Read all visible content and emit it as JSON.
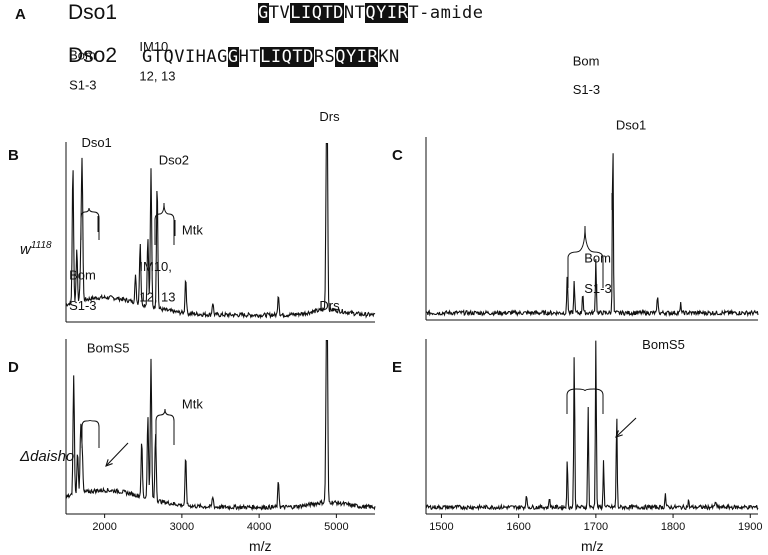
{
  "panelA": {
    "letter": "A",
    "sequences": [
      {
        "name": "Dso1",
        "segments": [
          {
            "t": "G",
            "h": true
          },
          {
            "t": "TV",
            "h": false
          },
          {
            "t": "LIQTD",
            "h": true
          },
          {
            "t": "NT",
            "h": false
          },
          {
            "t": "QYIR",
            "h": true
          },
          {
            "t": "T-amide",
            "h": false
          }
        ]
      },
      {
        "name": "Dso2",
        "segments": [
          {
            "t": "GTQVIHAG",
            "h": false
          },
          {
            "t": "G",
            "h": true
          },
          {
            "t": "HT",
            "h": false
          },
          {
            "t": "LIQTD",
            "h": true
          },
          {
            "t": "RS",
            "h": false
          },
          {
            "t": "QYIR",
            "h": true
          },
          {
            "t": "KN",
            "h": false
          }
        ]
      }
    ]
  },
  "row_labels": {
    "top": "w",
    "top_sup": "1118",
    "bottom": "Δdaisho"
  },
  "xlabel": "m/z",
  "chart_data": [
    {
      "panel": "B",
      "type": "line",
      "xlim": [
        1500,
        5500
      ],
      "ticks": [],
      "peaks": [
        [
          1590,
          0.78
        ],
        [
          1640,
          0.3
        ],
        [
          1690,
          0.18
        ],
        [
          1700,
          0.22
        ],
        [
          1710,
          0.68
        ],
        [
          2400,
          0.15
        ],
        [
          2460,
          0.35
        ],
        [
          2560,
          0.4
        ],
        [
          2600,
          0.78
        ],
        [
          2680,
          0.72
        ],
        [
          3050,
          0.2
        ],
        [
          3400,
          0.07
        ],
        [
          4250,
          0.12
        ],
        [
          4870,
          0.65
        ],
        [
          4880,
          1.0
        ]
      ],
      "labels": [
        {
          "text": "Bom",
          "x": 1540,
          "y": 1.5
        },
        {
          "text": "S1-3",
          "x": 1540,
          "y": 1.33
        },
        {
          "text": "Dso1",
          "x": 1700,
          "y": 1.0
        },
        {
          "text": "IM10,",
          "x": 2450,
          "y": 1.55
        },
        {
          "text": "12, 13",
          "x": 2450,
          "y": 1.38
        },
        {
          "text": "Dso2",
          "x": 2700,
          "y": 0.9
        },
        {
          "text": "Mtk",
          "x": 3000,
          "y": 0.5
        },
        {
          "text": "Drs",
          "x": 4780,
          "y": 1.15
        }
      ]
    },
    {
      "panel": "C",
      "type": "line",
      "xlim": [
        1480,
        1910
      ],
      "ticks": [],
      "peaks": [
        [
          1663,
          0.22
        ],
        [
          1672,
          0.18
        ],
        [
          1683,
          0.12
        ],
        [
          1700,
          0.3
        ],
        [
          1722,
          1.0
        ],
        [
          1780,
          0.1
        ],
        [
          1810,
          0.05
        ]
      ],
      "labels": [
        {
          "text": "Bom",
          "x": 1670,
          "y": 1.43
        },
        {
          "text": "S1-3",
          "x": 1670,
          "y": 1.27
        },
        {
          "text": "Dso1",
          "x": 1726,
          "y": 1.07
        }
      ]
    },
    {
      "panel": "D",
      "type": "line",
      "xlim": [
        1500,
        5500
      ],
      "ticks": [
        2000,
        3000,
        4000,
        5000
      ],
      "peaks": [
        [
          1600,
          0.7
        ],
        [
          1650,
          0.25
        ],
        [
          1690,
          0.4
        ],
        [
          1710,
          0.25
        ],
        [
          2480,
          0.32
        ],
        [
          2560,
          0.48
        ],
        [
          2600,
          0.82
        ],
        [
          2660,
          0.4
        ],
        [
          3050,
          0.28
        ],
        [
          3400,
          0.06
        ],
        [
          4250,
          0.15
        ],
        [
          4870,
          0.65
        ],
        [
          4880,
          1.0
        ]
      ],
      "labels": [
        {
          "text": "Bom",
          "x": 1540,
          "y": 1.38
        },
        {
          "text": "S1-3",
          "x": 1540,
          "y": 1.2
        },
        {
          "text": "BomS5",
          "x": 1770,
          "y": 0.95
        },
        {
          "text": "IM10,",
          "x": 2450,
          "y": 1.43
        },
        {
          "text": "12, 13",
          "x": 2450,
          "y": 1.25
        },
        {
          "text": "Mtk",
          "x": 3000,
          "y": 0.62
        },
        {
          "text": "Drs",
          "x": 4780,
          "y": 1.2
        }
      ]
    },
    {
      "panel": "E",
      "type": "line",
      "xlim": [
        1480,
        1910
      ],
      "ticks": [
        1500,
        1600,
        1700,
        1800,
        1900
      ],
      "peaks": [
        [
          1610,
          0.08
        ],
        [
          1640,
          0.06
        ],
        [
          1663,
          0.28
        ],
        [
          1672,
          0.92
        ],
        [
          1690,
          0.6
        ],
        [
          1700,
          1.0
        ],
        [
          1710,
          0.28
        ],
        [
          1727,
          0.56
        ],
        [
          1790,
          0.08
        ],
        [
          1820,
          0.04
        ],
        [
          1855,
          0.04
        ]
      ],
      "labels": [
        {
          "text": "Bom",
          "x": 1685,
          "y": 1.48
        },
        {
          "text": "S1-3",
          "x": 1685,
          "y": 1.3
        },
        {
          "text": "BomS5",
          "x": 1760,
          "y": 0.97
        }
      ]
    }
  ],
  "colors": {
    "ink": "#111111"
  }
}
